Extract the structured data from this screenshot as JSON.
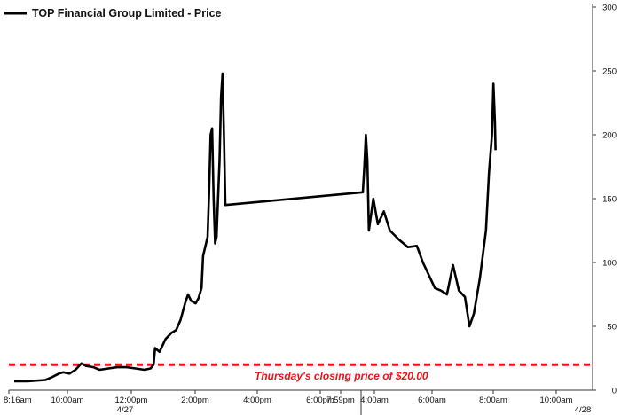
{
  "chart_data": {
    "type": "line",
    "title": "",
    "legend": {
      "label": "TOP Financial Group Limited - Price",
      "placement": "top-left"
    },
    "y_axis": {
      "side": "right",
      "ylim": [
        0,
        300
      ],
      "ticks": [
        "0",
        "50",
        "100",
        "150",
        "200",
        "250",
        "300"
      ]
    },
    "x_axis": {
      "ticks": [
        "8:16am",
        "10:00am",
        "12:00pm",
        "2:00pm",
        "4:00pm",
        "6:00pm",
        "7:59pm",
        "4:00am",
        "6:00am",
        "8:00am",
        "10:00am"
      ],
      "date_labels": [
        "4/27",
        "4/28"
      ]
    },
    "grid": false,
    "colors": {
      "line": "#000000",
      "reference": "#e8161b",
      "axis": "#333333"
    },
    "reference_line": {
      "value": 20,
      "label": "Thursday's closing price of $20.00"
    },
    "series": [
      {
        "name": "TOP Financial Group Limited - Price",
        "points": [
          [
            "4/27 8:16am",
            7
          ],
          [
            "4/27 9:00am",
            7
          ],
          [
            "4/27 10:00am",
            8
          ],
          [
            "4/27 10:20am",
            10
          ],
          [
            "4/27 10:45am",
            13
          ],
          [
            "4/27 11:00am",
            14
          ],
          [
            "4/27 11:20am",
            13
          ],
          [
            "4/27 11:40am",
            16
          ],
          [
            "4/27 12:00pm",
            21
          ],
          [
            "4/27 12:15pm",
            19
          ],
          [
            "4/27 12:40pm",
            18
          ],
          [
            "4/27 1:00pm",
            16
          ],
          [
            "4/27 1:30pm",
            17
          ],
          [
            "4/27 2:00pm",
            18
          ],
          [
            "4/27 2:30pm",
            18
          ],
          [
            "4/27 3:00pm",
            17
          ],
          [
            "4/27 3:30pm",
            16
          ],
          [
            "4/27 3:50pm",
            17
          ],
          [
            "4/27 4:00pm",
            20
          ],
          [
            "4/27 4:05pm",
            33
          ],
          [
            "4/27 4:20pm",
            30
          ],
          [
            "4/27 4:40pm",
            40
          ],
          [
            "4/27 5:00pm",
            45
          ],
          [
            "4/27 5:15pm",
            47
          ],
          [
            "4/27 5:30pm",
            55
          ],
          [
            "4/27 5:45pm",
            68
          ],
          [
            "4/27 5:55pm",
            75
          ],
          [
            "4/27 6:05pm",
            70
          ],
          [
            "4/27 6:20pm",
            68
          ],
          [
            "4/27 6:30pm",
            72
          ],
          [
            "4/27 6:40pm",
            80
          ],
          [
            "4/27 6:45pm",
            105
          ],
          [
            "4/27 6:55pm",
            115
          ],
          [
            "4/27 7:00pm",
            120
          ],
          [
            "4/27 7:05pm",
            155
          ],
          [
            "4/27 7:10pm",
            200
          ],
          [
            "4/27 7:15pm",
            205
          ],
          [
            "4/27 7:20pm",
            150
          ],
          [
            "4/27 7:25pm",
            115
          ],
          [
            "4/27 7:30pm",
            120
          ],
          [
            "4/27 7:40pm",
            180
          ],
          [
            "4/27 7:45pm",
            230
          ],
          [
            "4/27 7:50pm",
            248
          ],
          [
            "4/27 7:55pm",
            195
          ],
          [
            "4/27 7:59pm",
            145
          ],
          [
            "4/28 4:00am",
            155
          ],
          [
            "4/28 4:05am",
            175
          ],
          [
            "4/28 4:10am",
            200
          ],
          [
            "4/28 4:15am",
            180
          ],
          [
            "4/28 4:20am",
            125
          ],
          [
            "4/28 4:35am",
            150
          ],
          [
            "4/28 4:50am",
            130
          ],
          [
            "4/28 5:10am",
            140
          ],
          [
            "4/28 5:30am",
            125
          ],
          [
            "4/28 6:00am",
            118
          ],
          [
            "4/28 6:30am",
            112
          ],
          [
            "4/28 7:00am",
            113
          ],
          [
            "4/28 7:20am",
            100
          ],
          [
            "4/28 7:40am",
            90
          ],
          [
            "4/28 8:00am",
            80
          ],
          [
            "4/28 8:20am",
            78
          ],
          [
            "4/28 8:40am",
            75
          ],
          [
            "4/28 9:00am",
            98
          ],
          [
            "4/28 9:20am",
            78
          ],
          [
            "4/28 9:40am",
            73
          ],
          [
            "4/28 9:55am",
            50
          ],
          [
            "4/28 10:10am",
            60
          ],
          [
            "4/28 10:30am",
            88
          ],
          [
            "4/28 10:50am",
            125
          ],
          [
            "4/28 11:00am",
            170
          ],
          [
            "4/28 11:10am",
            200
          ],
          [
            "4/28 11:15am",
            240
          ],
          [
            "4/28 11:20am",
            210
          ],
          [
            "4/28 11:22am",
            188
          ]
        ]
      }
    ]
  }
}
